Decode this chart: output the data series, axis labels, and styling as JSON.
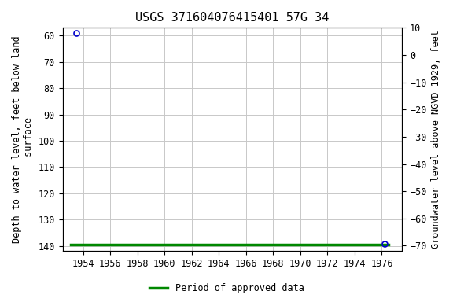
{
  "title": "USGS 371604076415401 57G 34",
  "ylabel_left": "Depth to water level, feet below land\n surface",
  "ylabel_right": "Groundwater level above NGVD 1929, feet",
  "xlim": [
    1952.5,
    1977.5
  ],
  "ylim_left": [
    57,
    142
  ],
  "ylim_right": [
    10,
    -72
  ],
  "yticks_left": [
    60,
    70,
    80,
    90,
    100,
    110,
    120,
    130,
    140
  ],
  "yticks_right": [
    10,
    0,
    -10,
    -20,
    -30,
    -40,
    -50,
    -60,
    -70
  ],
  "xticks": [
    1954,
    1956,
    1958,
    1960,
    1962,
    1964,
    1966,
    1968,
    1970,
    1972,
    1974,
    1976
  ],
  "point1_x": 1953.5,
  "point1_y": 59.0,
  "green_line_x1": 1953.1,
  "green_line_x2": 1976.5,
  "green_line_y": 139.5,
  "point3_x": 1976.2,
  "point3_y": 139.2,
  "background_color": "#ffffff",
  "plot_bg_color": "#ffffff",
  "grid_color": "#c8c8c8",
  "point_color": "#0000cc",
  "green_color": "#008800",
  "title_fontsize": 11,
  "label_fontsize": 8.5,
  "tick_fontsize": 8.5,
  "font_family": "monospace"
}
